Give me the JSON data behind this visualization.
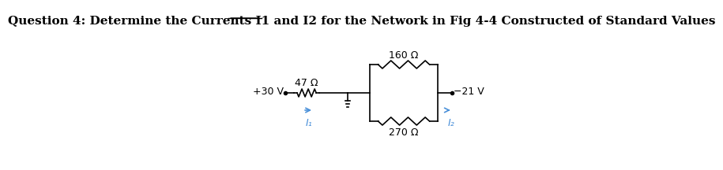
{
  "title": "Question 4: Determine the Currents I1 and I2 for the Network in Fig 4-4 Constructed of Standard Values",
  "bg_color": "#ffffff",
  "line_color": "#000000",
  "arrow_color": "#4a90d9",
  "resistor_47_label": "47 Ω",
  "resistor_160_label": "160 Ω",
  "resistor_270_label": "270 Ω",
  "voltage_left": "+30 V",
  "voltage_right": "−21 V",
  "current_1": "I₁",
  "current_2": "I₂",
  "title_fontsize": 11,
  "circuit_fontsize": 9
}
